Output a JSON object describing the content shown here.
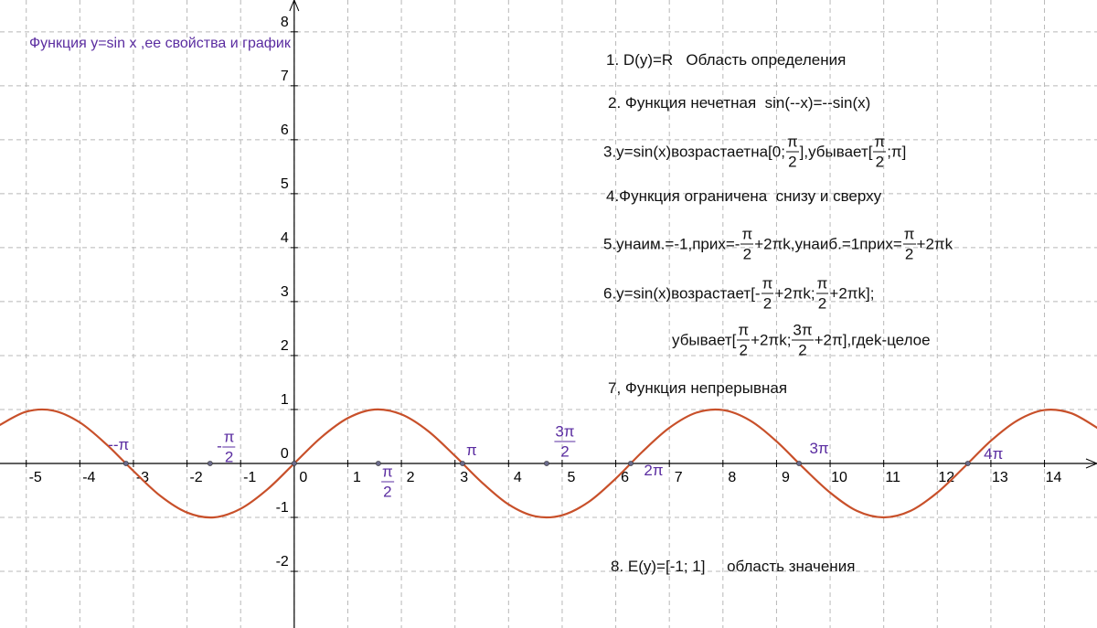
{
  "title": "Функция y=sin x ,ее свойства и график",
  "chart_data": {
    "type": "line",
    "xlim": [
      -5.49,
      14.98
    ],
    "ylim": [
      -3.05,
      8.59
    ],
    "xticks": [
      -5,
      -4,
      -3,
      -2,
      -1,
      0,
      1,
      2,
      3,
      4,
      5,
      6,
      7,
      8,
      9,
      10,
      11,
      12,
      13,
      14
    ],
    "yticks": [
      -2,
      -1,
      0,
      1,
      2,
      3,
      4,
      5,
      6,
      7,
      8
    ],
    "grid": true,
    "series": [
      {
        "color": "#c8502a",
        "x": [
          -5.5,
          -5,
          -4.5,
          -4,
          -3.5,
          -3,
          -2.5,
          -2,
          -1.5,
          -1,
          -0.5,
          0,
          0.5,
          1,
          1.5,
          2,
          2.5,
          3,
          3.5,
          4,
          4.5,
          5,
          5.5,
          6,
          6.5,
          7,
          7.5,
          8,
          8.5,
          9,
          9.5,
          10,
          10.5,
          11,
          11.5,
          12,
          12.5,
          13,
          13.5,
          14,
          14.5,
          15
        ],
        "values": [
          0.71,
          0.96,
          0.98,
          0.76,
          0.35,
          -0.14,
          -0.6,
          -0.91,
          -1.0,
          -0.84,
          -0.48,
          0,
          0.48,
          0.84,
          1.0,
          0.91,
          0.6,
          0.14,
          -0.35,
          -0.76,
          -0.98,
          -0.96,
          -0.71,
          -0.28,
          0.22,
          0.66,
          0.94,
          0.99,
          0.8,
          0.41,
          -0.08,
          -0.54,
          -0.88,
          -1.0,
          -0.88,
          -0.54,
          -0.07,
          0.42,
          0.8,
          0.99,
          0.93,
          0.65
        ]
      }
    ],
    "points": [
      {
        "x": -3.14,
        "y": 0,
        "label": [
          "--π"
        ]
      },
      {
        "x": -1.57,
        "y": 0,
        "label": [
          "-",
          {
            "num": "π",
            "den": "2"
          }
        ]
      },
      {
        "x": 0,
        "y": 0,
        "label": []
      },
      {
        "x": 1.57,
        "y": 0,
        "label": [
          {
            "num": "π",
            "den": "2"
          }
        ]
      },
      {
        "x": 3.14,
        "y": 0,
        "label": [
          "π"
        ]
      },
      {
        "x": 4.71,
        "y": 0,
        "label": [
          {
            "num": "3π",
            "den": "2"
          }
        ]
      },
      {
        "x": 6.28,
        "y": 0,
        "label": [
          "2π"
        ]
      },
      {
        "x": 9.42,
        "y": 0,
        "label": [
          "3π"
        ]
      },
      {
        "x": 12.57,
        "y": 0,
        "label": [
          "4π"
        ]
      }
    ]
  },
  "properties": [
    [
      "1. D(y)=R   Область определения"
    ],
    [
      "2. Функция нечетная  sin(--x)=--sin(x)"
    ],
    [
      "3.y=sin(x)возрастаетна[0;",
      {
        "num": "π",
        "den": "2"
      },
      "],убывает[",
      {
        "num": "π",
        "den": "2"
      },
      ";π]"
    ],
    [
      "4.Функция ограничена  снизу и сверху"
    ],
    [
      "5.yнаим.=-1,прих=-",
      {
        "num": "π",
        "den": "2"
      },
      "+2πk,yнаиб.=1прих=",
      {
        "num": "π",
        "den": "2"
      },
      "+2πk"
    ],
    [
      "6.y=sin(x)возрастает[-",
      {
        "num": "π",
        "den": "2"
      },
      "+2πk;",
      {
        "num": "π",
        "den": "2"
      },
      "+2πk];"
    ],
    [
      "убывает[",
      {
        "num": "π",
        "den": "2"
      },
      "+2πk;",
      {
        "num": "3π",
        "den": "2"
      },
      "+2π],гдеk-целое"
    ],
    [
      "7, Функция непрерывная"
    ],
    [
      "8. E(y)=[-1; 1]     область значения"
    ]
  ]
}
